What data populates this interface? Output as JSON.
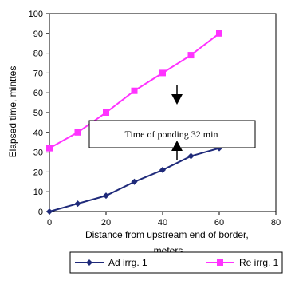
{
  "chart_data": {
    "type": "line",
    "title": "",
    "xlabel": "Distance from upstream end of border, meters",
    "ylabel": "Elapsed time, minttes",
    "xlim": [
      0,
      80
    ],
    "ylim": [
      0,
      100
    ],
    "xticks": [
      0,
      20,
      40,
      60,
      80
    ],
    "yticks": [
      0,
      10,
      20,
      30,
      40,
      50,
      60,
      70,
      80,
      90,
      100
    ],
    "grid": false,
    "legend_position": "bottom",
    "series": [
      {
        "name": "Ad irrg. 1",
        "color": "#1f2a7a",
        "marker": "diamond",
        "x": [
          0,
          10,
          20,
          30,
          40,
          50,
          60
        ],
        "y": [
          0,
          4,
          8,
          15,
          21,
          28,
          32
        ]
      },
      {
        "name": "Re irrg. 1",
        "color": "#ff33ff",
        "marker": "square",
        "x": [
          0,
          10,
          20,
          30,
          40,
          50,
          60
        ],
        "y": [
          32,
          40,
          50,
          61,
          70,
          79,
          90
        ]
      }
    ],
    "annotations": [
      {
        "text": "Time of ponding 32 min"
      }
    ]
  }
}
